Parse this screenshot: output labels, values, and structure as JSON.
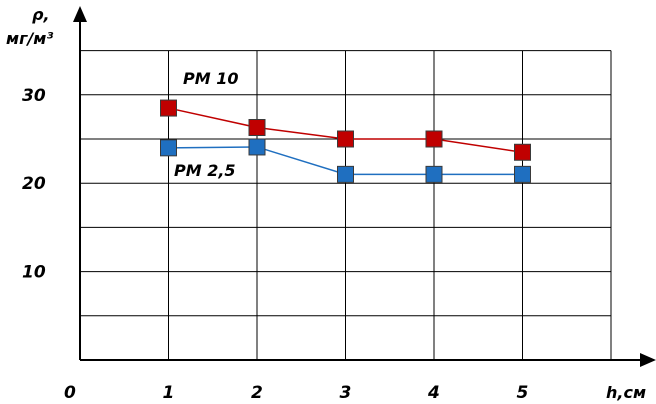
{
  "chart_data": {
    "type": "line",
    "title": "",
    "xlabel": "h,см",
    "ylabel_line1": "ρ,",
    "ylabel_line2": "мг/м³",
    "x": [
      1,
      2,
      3,
      4,
      5
    ],
    "x_tick_labels": [
      "0",
      "1",
      "2",
      "3",
      "4",
      "5"
    ],
    "y_tick_labels": [
      "10",
      "20",
      "30"
    ],
    "xlim": [
      0,
      6
    ],
    "ylim": [
      0,
      37
    ],
    "grid": true,
    "legend": "none",
    "series": [
      {
        "name": "PM 10",
        "values": [
          28.5,
          26.3,
          25.0,
          25.0,
          23.5
        ],
        "color": "#c00000"
      },
      {
        "name": "PM 2,5",
        "values": [
          24.0,
          24.1,
          21.0,
          21.0,
          21.0
        ],
        "color": "#1f6fc0"
      }
    ]
  }
}
